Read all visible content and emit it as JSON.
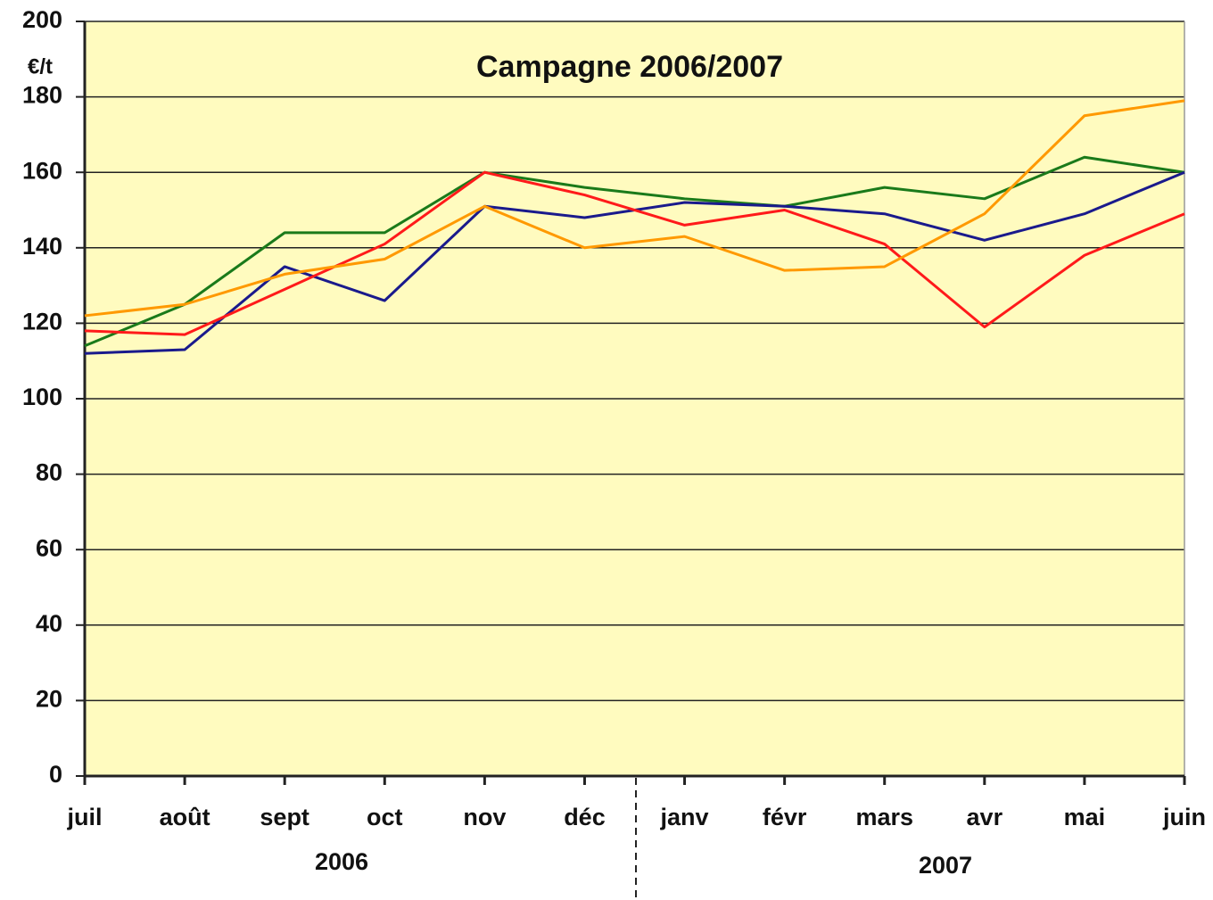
{
  "chart_data": {
    "type": "line",
    "title": "Campagne 2006/2007",
    "y_label": "€/t",
    "categories": [
      "juil",
      "août",
      "sept",
      "oct",
      "nov",
      "déc",
      "janv",
      "févr",
      "mars",
      "avr",
      "mai",
      "juin"
    ],
    "groups": [
      "2006",
      "2007"
    ],
    "series": [
      {
        "color": "#1a7a1a",
        "values": [
          114,
          125,
          144,
          144,
          160,
          156,
          153,
          151,
          156,
          153,
          164,
          160
        ]
      },
      {
        "color": "#1a1a8c",
        "values": [
          112,
          113,
          135,
          126,
          151,
          148,
          152,
          151,
          149,
          142,
          149,
          160
        ]
      },
      {
        "color": "#ff1a1a",
        "values": [
          118,
          117,
          129,
          141,
          160,
          154,
          146,
          150,
          141,
          119,
          138,
          149
        ]
      },
      {
        "color": "#ff9900",
        "values": [
          122,
          125,
          133,
          137,
          151,
          140,
          143,
          134,
          135,
          149,
          175,
          179
        ]
      }
    ],
    "ylim": [
      0,
      200
    ],
    "yticks": [
      0,
      20,
      40,
      60,
      80,
      100,
      120,
      140,
      160,
      180,
      200
    ],
    "grid": true
  }
}
